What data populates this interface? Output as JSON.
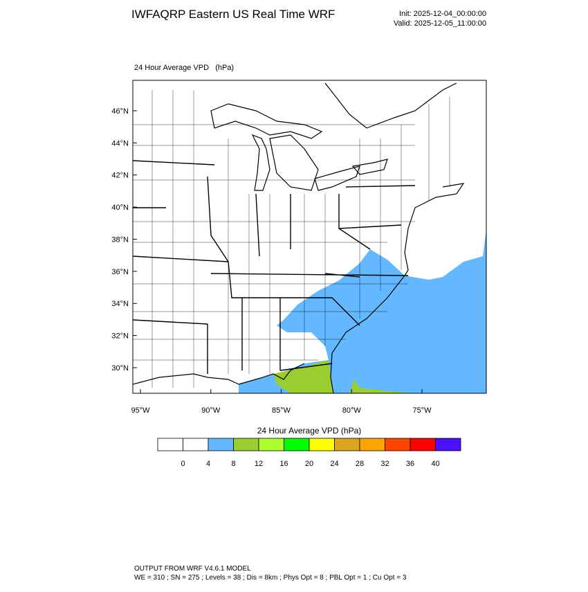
{
  "header": {
    "title": "IWFAQRP Eastern US Real Time WRF",
    "init": "Init: 2025-12-04_00:00:00",
    "valid": "Valid: 2025-12-05_11:00:00"
  },
  "map": {
    "label": "24 Hour Average VPD   (hPa)",
    "latticks": [
      {
        "value": 30,
        "label": "30°N"
      },
      {
        "value": 32,
        "label": "32°N"
      },
      {
        "value": 34,
        "label": "34°N"
      },
      {
        "value": 36,
        "label": "36°N"
      },
      {
        "value": 38,
        "label": "38°N"
      },
      {
        "value": 40,
        "label": "40°N"
      },
      {
        "value": 42,
        "label": "42°N"
      },
      {
        "value": 44,
        "label": "44°N"
      },
      {
        "value": 46,
        "label": "46°N"
      }
    ],
    "lonticks": [
      {
        "value": -95,
        "label": "95°W"
      },
      {
        "value": -90,
        "label": "90°W"
      },
      {
        "value": -85,
        "label": "85°W"
      },
      {
        "value": -80,
        "label": "80°W"
      },
      {
        "value": -75,
        "label": "75°W"
      }
    ]
  },
  "colorbar": {
    "title": "24 Hour Average VPD  (hPa)",
    "levels": [
      0,
      4,
      8,
      12,
      16,
      20,
      24,
      28,
      32,
      36,
      40
    ],
    "colors": [
      "#ffffff",
      "#ffffff",
      "#63b8ff",
      "#9acd32",
      "#adff2f",
      "#00ff00",
      "#ffff00",
      "#daa520",
      "#ffa500",
      "#ff4500",
      "#ff0000",
      "#4a10ff"
    ]
  },
  "footer": {
    "line1": "OUTPUT FROM WRF V4.6.1 MODEL",
    "line2": "WE = 310 ; SN = 275 ; Levels = 38 ; Dis = 8km ; Phys Opt = 8 ; PBL Opt = 1 ; Cu Opt = 3"
  }
}
